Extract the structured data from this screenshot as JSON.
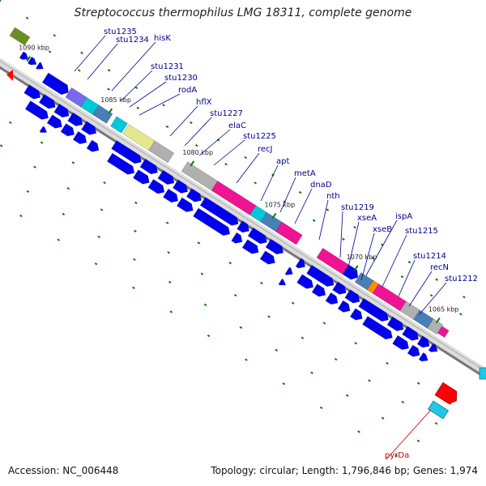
{
  "title": "Streptococcus thermophilus LMG 18311, complete genome",
  "accession": "Accession: NC_006448",
  "summary": "Topology: circular; Length: 1,796,846 bp; Genes: 1,974",
  "ticks": [
    {
      "kbp": 1090,
      "label": "1090 kbp"
    },
    {
      "kbp": 1085,
      "label": "1085 kbp"
    },
    {
      "kbp": 1080,
      "label": "1080 kbp"
    },
    {
      "kbp": 1075,
      "label": "1075 kbp"
    },
    {
      "kbp": 1070,
      "label": "1070 kbp"
    },
    {
      "kbp": 1065,
      "label": "1065 kbp"
    }
  ],
  "genes": [
    {
      "name": "stu1235",
      "color": "#00008b"
    },
    {
      "name": "stu1234",
      "color": "#00008b"
    },
    {
      "name": "hisK",
      "color": "#00008b"
    },
    {
      "name": "stu1231",
      "color": "#00008b"
    },
    {
      "name": "stu1230",
      "color": "#00008b"
    },
    {
      "name": "rodA",
      "color": "#00008b"
    },
    {
      "name": "hflX",
      "color": "#00008b"
    },
    {
      "name": "stu1227",
      "color": "#00008b"
    },
    {
      "name": "elaC",
      "color": "#00008b"
    },
    {
      "name": "stu1225",
      "color": "#00008b"
    },
    {
      "name": "recJ",
      "color": "#00008b"
    },
    {
      "name": "apt",
      "color": "#00008b"
    },
    {
      "name": "metA",
      "color": "#00008b"
    },
    {
      "name": "dnaD",
      "color": "#00008b"
    },
    {
      "name": "nth",
      "color": "#00008b"
    },
    {
      "name": "stu1219",
      "color": "#00008b"
    },
    {
      "name": "xseA",
      "color": "#00008b"
    },
    {
      "name": "ispA",
      "color": "#00008b"
    },
    {
      "name": "xseB",
      "color": "#00008b"
    },
    {
      "name": "stu1215",
      "color": "#00008b"
    },
    {
      "name": "stu1214",
      "color": "#00008b"
    },
    {
      "name": "recN",
      "color": "#00008b"
    },
    {
      "name": "stu1212",
      "color": "#00008b"
    },
    {
      "name": "pyrDa",
      "color": "#cc0000"
    }
  ],
  "colors": {
    "cds": "#0000ee",
    "rna_or_highlight": "#ff0000",
    "backbone": "#888888",
    "gc_tick": "#008000",
    "cog_magenta": "#ee1493",
    "cog_cyan": "#00c8d8",
    "cog_steel": "#4a7fb5",
    "cog_gray": "#b0b0b0",
    "cog_khaki": "#e6e68c",
    "cog_purple": "#7b68ee",
    "cog_olive": "#6b8e23",
    "cog_orange": "#ff8c00"
  }
}
